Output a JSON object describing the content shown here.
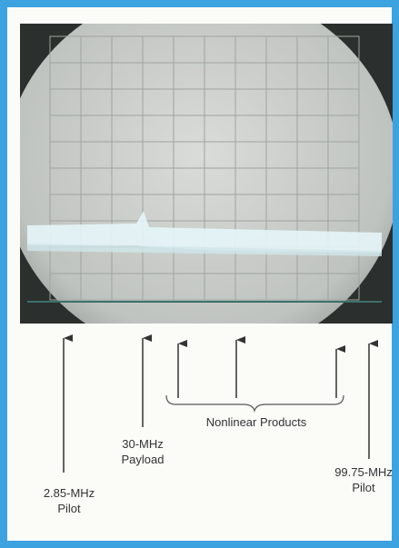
{
  "annotations": {
    "nonlinear": "Nonlinear Products",
    "payload": [
      "30-MHz",
      "Payload"
    ],
    "pilot_low": [
      "2.85-MHz",
      "Pilot"
    ],
    "pilot_high": [
      "99.75-MHz",
      "Pilot"
    ]
  }
}
